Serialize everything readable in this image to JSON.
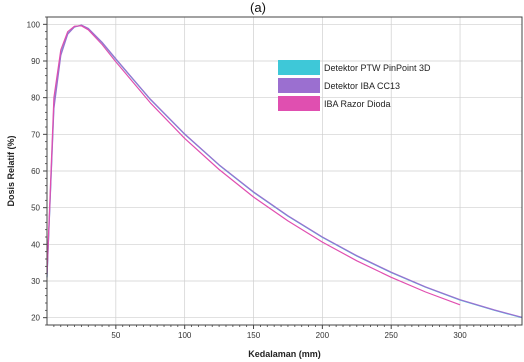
{
  "chart_data": {
    "type": "line",
    "panel_label": "(a)",
    "xlabel": "Kedalaman (mm)",
    "ylabel": "Dosis Relatif (%)",
    "xlim": [
      0,
      345
    ],
    "ylim": [
      18,
      102
    ],
    "x_ticks": [
      50,
      100,
      150,
      200,
      250,
      300
    ],
    "y_ticks": [
      20,
      30,
      40,
      50,
      60,
      70,
      80,
      90,
      100
    ],
    "grid": true,
    "legend_position": "top-right",
    "series": [
      {
        "name": "Detektor PTW PinPoint 3D",
        "color": "#3ec8d8",
        "x": [
          0,
          5,
          10,
          15,
          20,
          25,
          30,
          40,
          50,
          75,
          100,
          125,
          150,
          175,
          200,
          225,
          250,
          275,
          300,
          325,
          345
        ],
        "y": [
          31,
          78,
          92,
          97.5,
          99.3,
          99.7,
          98.8,
          95,
          90.5,
          79.5,
          70,
          61.6,
          54.2,
          47.7,
          41.9,
          36.8,
          32.3,
          28.3,
          24.8,
          22,
          20
        ]
      },
      {
        "name": "Detektor IBA CC13",
        "color": "#9b6fd0",
        "x": [
          0,
          5,
          10,
          15,
          20,
          25,
          30,
          40,
          50,
          75,
          100,
          125,
          150,
          175,
          200,
          225,
          250,
          275,
          300,
          325,
          345
        ],
        "y": [
          31,
          77,
          91.5,
          97.3,
          99.3,
          99.8,
          98.9,
          95.1,
          90.6,
          79.6,
          70.1,
          61.7,
          54.3,
          47.8,
          42,
          36.9,
          32.4,
          28.4,
          24.9,
          22.1,
          20.1
        ]
      },
      {
        "name": "IBA Razor Dioda",
        "color": "#e04fb0",
        "x": [
          0,
          5,
          10,
          15,
          20,
          25,
          30,
          40,
          50,
          75,
          100,
          125,
          150,
          175,
          200,
          225,
          250,
          275,
          300
        ],
        "y": [
          32,
          80,
          93,
          98,
          99.5,
          99.6,
          98.5,
          94.5,
          89.8,
          78.6,
          68.9,
          60.4,
          52.9,
          46.4,
          40.6,
          35.5,
          31,
          27,
          23.5
        ]
      }
    ]
  }
}
